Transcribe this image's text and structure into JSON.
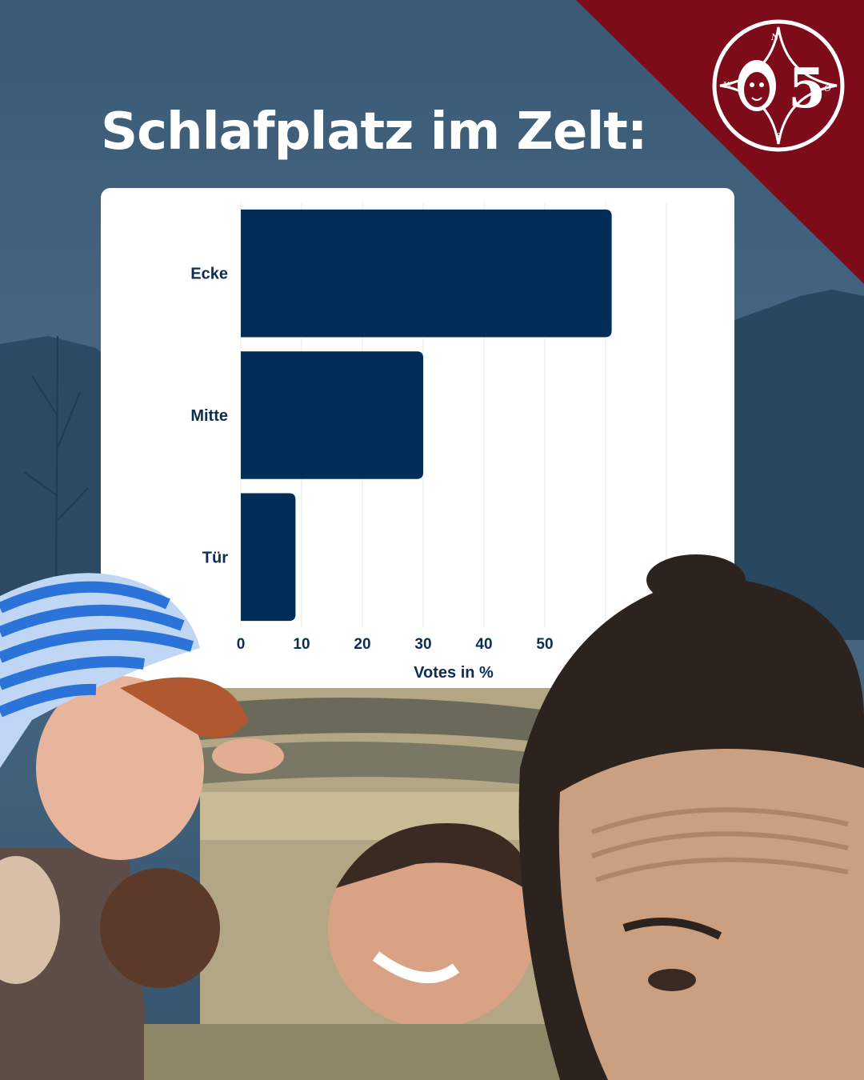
{
  "title": "Schlafplatz im Zelt:",
  "colors": {
    "background": "#3a5a76",
    "corner": "#7d0b1a",
    "bar": "#012d57",
    "text": "#0d2c52"
  },
  "logo": {
    "icon": "scout-group-emblem-icon",
    "compass_letters": [
      "N",
      "W",
      "S",
      "O"
    ],
    "numeral": "5"
  },
  "chart_data": {
    "type": "bar",
    "orientation": "horizontal",
    "categories": [
      "Ecke",
      "Mitte",
      "Tür"
    ],
    "values": [
      61,
      30,
      9
    ],
    "xlabel": "Votes in %",
    "ylabel": "",
    "xlim": [
      0,
      70
    ],
    "xticks": [
      0,
      10,
      20,
      30,
      40,
      50
    ],
    "grid": true
  }
}
